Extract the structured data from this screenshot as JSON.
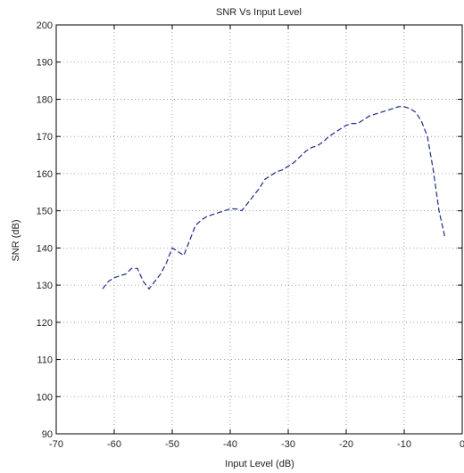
{
  "chart_data": {
    "type": "line",
    "title": "SNR Vs Input Level",
    "xlabel": "Input Level (dB)",
    "ylabel": "SNR  (dB)",
    "xlim": [
      -70,
      0
    ],
    "ylim": [
      90,
      200
    ],
    "xticks": [
      -70,
      -60,
      -50,
      -40,
      -30,
      -20,
      -10,
      0
    ],
    "yticks": [
      90,
      100,
      110,
      120,
      130,
      140,
      150,
      160,
      170,
      180,
      190,
      200
    ],
    "xtick_labels": [
      "-70",
      "-60",
      "-50",
      "-40",
      "-30",
      "-20",
      "-10",
      "0"
    ],
    "ytick_labels": [
      "90",
      "100",
      "110",
      "120",
      "130",
      "140",
      "150",
      "160",
      "170",
      "180",
      "190",
      "200"
    ],
    "grid": true,
    "line_style": "dashed",
    "colors": {
      "line": "#1f2a8a",
      "grid": "#8a8a8a",
      "axes": "#000000"
    },
    "series": [
      {
        "x": [
          -62,
          -61,
          -60,
          -59,
          -58,
          -57,
          -56,
          -55,
          -54,
          -53,
          -52,
          -51,
          -50,
          -49,
          -48,
          -47,
          -46,
          -45,
          -44,
          -43,
          -42,
          -41,
          -40,
          -39,
          -38,
          -37,
          -36,
          -35,
          -34,
          -33,
          -32,
          -31,
          -30,
          -29,
          -28,
          -27,
          -26,
          -25,
          -24,
          -23,
          -22,
          -21,
          -20,
          -19,
          -18,
          -17,
          -16,
          -15,
          -14,
          -13,
          -12,
          -11,
          -10,
          -9,
          -8,
          -7,
          -6,
          -5,
          -4,
          -3
        ],
        "y": [
          129,
          131,
          132,
          132.5,
          133,
          134.5,
          134.5,
          131,
          129,
          131,
          133,
          136,
          140,
          139,
          138,
          142,
          146,
          147.5,
          148.5,
          149,
          149.5,
          150,
          150.5,
          150.5,
          150,
          152,
          154,
          156,
          158.5,
          159.5,
          160.5,
          161,
          162,
          163,
          164.5,
          166,
          167,
          167.5,
          168.5,
          170,
          171,
          172,
          173,
          173.5,
          173.5,
          174.5,
          175.5,
          176,
          176.5,
          177,
          177.5,
          178,
          178,
          177.5,
          176.5,
          174,
          170,
          161,
          150,
          143
        ]
      }
    ]
  }
}
